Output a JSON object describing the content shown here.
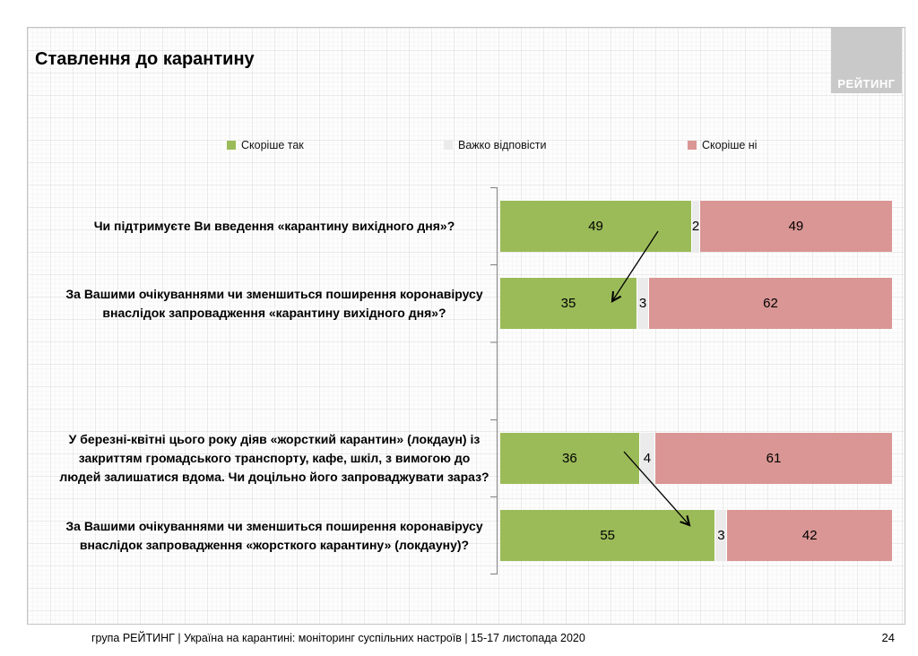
{
  "slide": {
    "title": "Ставлення до карантину",
    "logo_text": "РЕЙТИНГ",
    "footer": "група РЕЙТИНГ | Україна на карантині: моніторинг суспільних настроїв | 15-17 листопада 2020",
    "page_number": "24"
  },
  "chart_data": {
    "type": "bar",
    "orientation": "horizontal",
    "stacked": true,
    "title": "Ставлення до карантину",
    "legend_position": "top",
    "xlim": [
      0,
      100
    ],
    "grid": false,
    "series": [
      {
        "name": "Скоріше так",
        "color": "#9bbb59"
      },
      {
        "name": "Важко відповісти",
        "color": "#ebebeb"
      },
      {
        "name": "Скоріше ні",
        "color": "#d99694"
      }
    ],
    "categories": [
      "Чи підтримуєте Ви введення «карантину вихідного дня»?",
      "За Вашими очікуваннями чи зменшиться поширення коронавірусу внаслідок запровадження «карантину вихідного дня»?",
      "У березні-квітні цього року діяв «жорсткий карантин» (локдаун) із закриттям громадського транспорту, кафе, шкіл, з вимогою до людей залишатися вдома. Чи доцільно його запроваджувати зараз?",
      "За Вашими очікуваннями чи зменшиться поширення коронавірусу внаслідок запровадження «жорсткого карантину» (локдауну)?"
    ],
    "values": [
      [
        49,
        2,
        49
      ],
      [
        35,
        3,
        62
      ],
      [
        36,
        4,
        61
      ],
      [
        55,
        3,
        42
      ]
    ],
    "annotations": [
      {
        "type": "arrow",
        "from": {
          "row": 1,
          "series": "Скоріше так"
        },
        "to": {
          "row": 2,
          "series": "Скоріше так"
        }
      },
      {
        "type": "arrow",
        "from": {
          "row": 3,
          "series": "Скоріше так"
        },
        "to": {
          "row": 4,
          "series": "Скоріше так"
        }
      }
    ]
  }
}
